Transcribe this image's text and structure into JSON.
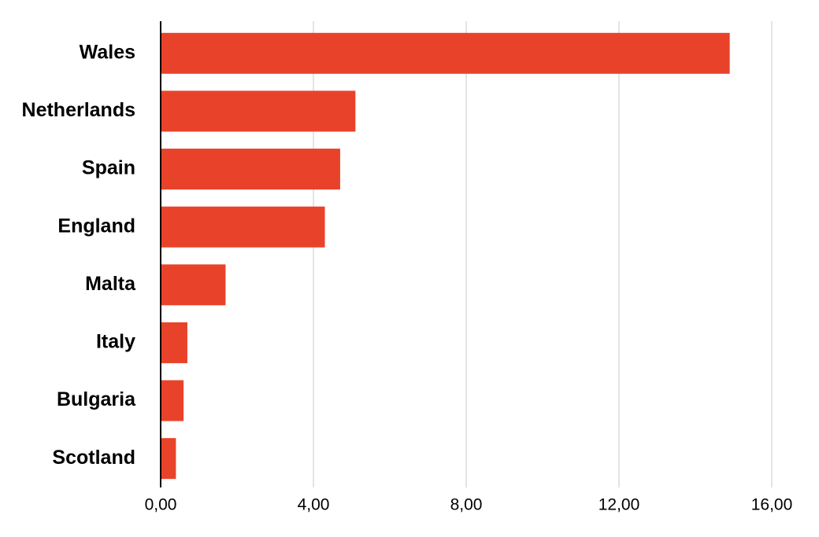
{
  "chart_data": {
    "type": "hbar",
    "categories": [
      "Wales",
      "Netherlands",
      "Spain",
      "England",
      "Malta",
      "Italy",
      "Bulgaria",
      "Scotland"
    ],
    "values": [
      14.9,
      5.1,
      4.7,
      4.3,
      1.7,
      0.7,
      0.6,
      0.4
    ],
    "color": "#e8432a",
    "xlim": [
      0,
      16
    ],
    "xticks": [
      {
        "value": 0,
        "label": "0,00"
      },
      {
        "value": 4,
        "label": "4,00"
      },
      {
        "value": 8,
        "label": "8,00"
      },
      {
        "value": 12,
        "label": "12,00"
      },
      {
        "value": 16,
        "label": "16,00"
      }
    ],
    "grid": true
  }
}
